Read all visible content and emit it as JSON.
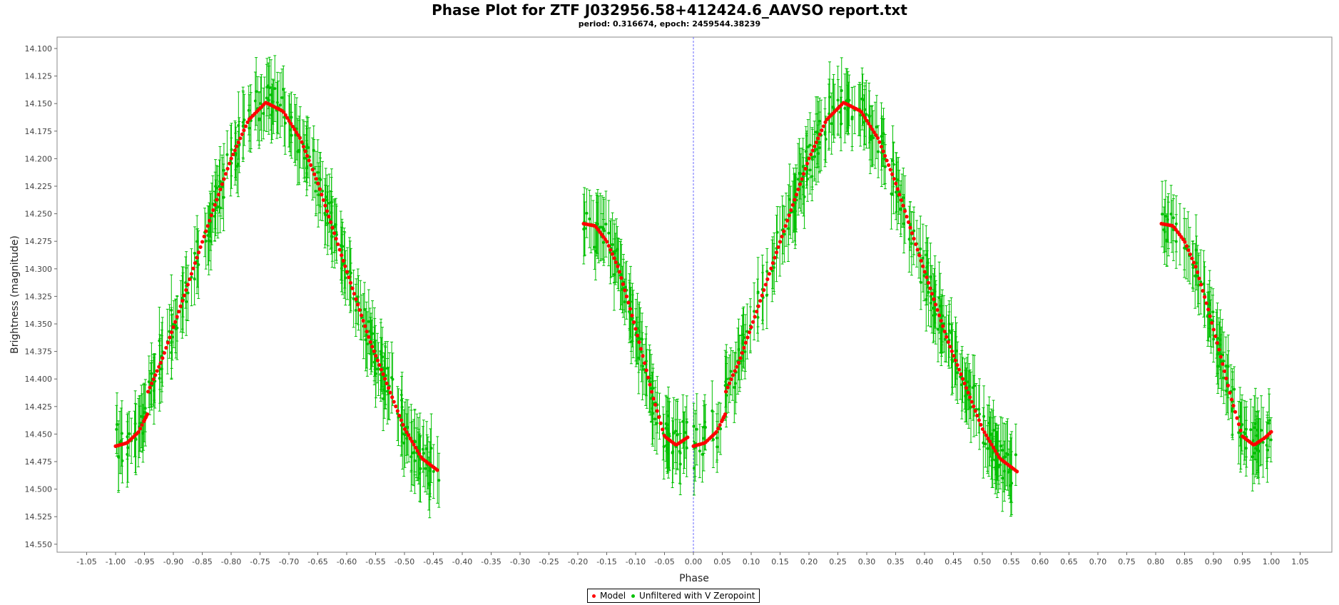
{
  "chart_data": {
    "type": "scatter",
    "title": "Phase Plot for ZTF J032956.58+412424.6_AAVSO report.txt",
    "subtitle": "period: 0.316674, epoch: 2459544.38239",
    "xlabel": "Phase",
    "ylabel": "Brightness (magnitude)",
    "xlim": [
      -1.1,
      1.1
    ],
    "ylim": [
      14.1,
      14.56
    ],
    "y_inverted": true,
    "grid": false,
    "legend_placement": "bottom-center",
    "x_ticks": [
      "-1.05",
      "-1.00",
      "-0.95",
      "-0.90",
      "-0.85",
      "-0.80",
      "-0.75",
      "-0.70",
      "-0.65",
      "-0.60",
      "-0.55",
      "-0.50",
      "-0.45",
      "-0.40",
      "-0.35",
      "-0.30",
      "-0.25",
      "-0.20",
      "-0.15",
      "-0.10",
      "-0.05",
      "0.00",
      "0.05",
      "0.10",
      "0.15",
      "0.20",
      "0.25",
      "0.30",
      "0.35",
      "0.40",
      "0.45",
      "0.50",
      "0.55",
      "0.60",
      "0.65",
      "0.70",
      "0.75",
      "0.80",
      "0.85",
      "0.90",
      "0.95",
      "1.00",
      "1.05"
    ],
    "y_ticks": [
      "14.100",
      "14.125",
      "14.150",
      "14.175",
      "14.200",
      "14.225",
      "14.250",
      "14.275",
      "14.300",
      "14.325",
      "14.350",
      "14.375",
      "14.400",
      "14.425",
      "14.450",
      "14.475",
      "14.500",
      "14.525",
      "14.550"
    ],
    "vertical_marker_x": 0.0,
    "series": [
      {
        "name": "Model",
        "color": "#ff0000",
        "segments": [
          {
            "x": [
              -1.0,
              -0.98,
              -0.96,
              -0.945
            ],
            "y": [
              14.461,
              14.458,
              14.448,
              14.432
            ]
          },
          {
            "x": [
              -0.95,
              -0.92,
              -0.89,
              -0.86,
              -0.83,
              -0.8,
              -0.77,
              -0.74,
              -0.71,
              -0.68,
              -0.65,
              -0.62,
              -0.59,
              -0.56,
              -0.53,
              -0.5,
              -0.47,
              -0.44
            ],
            "y": [
              14.419,
              14.383,
              14.338,
              14.291,
              14.245,
              14.2,
              14.165,
              14.149,
              14.157,
              14.182,
              14.222,
              14.27,
              14.318,
              14.365,
              14.405,
              14.445,
              14.472,
              14.484
            ]
          },
          {
            "x": [
              -0.19,
              -0.17,
              -0.15,
              -0.13,
              -0.11,
              -0.09,
              -0.07,
              -0.05,
              -0.03,
              -0.01
            ],
            "y": [
              14.259,
              14.261,
              14.275,
              14.299,
              14.335,
              14.374,
              14.416,
              14.452,
              14.46,
              14.453
            ]
          },
          {
            "x": [
              0.0,
              0.02,
              0.04,
              0.055
            ],
            "y": [
              14.461,
              14.458,
              14.448,
              14.432
            ]
          },
          {
            "x": [
              0.05,
              0.08,
              0.11,
              0.14,
              0.17,
              0.2,
              0.23,
              0.26,
              0.29,
              0.32,
              0.35,
              0.38,
              0.41,
              0.44,
              0.47,
              0.5,
              0.53,
              0.56
            ],
            "y": [
              14.419,
              14.383,
              14.338,
              14.291,
              14.245,
              14.2,
              14.165,
              14.149,
              14.157,
              14.182,
              14.222,
              14.27,
              14.318,
              14.365,
              14.405,
              14.445,
              14.472,
              14.484
            ]
          },
          {
            "x": [
              0.81,
              0.83,
              0.85,
              0.87,
              0.89,
              0.91,
              0.93,
              0.95,
              0.97,
              0.99,
              1.0
            ],
            "y": [
              14.259,
              14.261,
              14.275,
              14.299,
              14.335,
              14.374,
              14.416,
              14.452,
              14.46,
              14.453,
              14.448
            ]
          }
        ]
      },
      {
        "name": "Unfiltered with V Zeropoint",
        "color": "#00c000",
        "error_bar": 0.025,
        "scatter": 0.018,
        "x_ranges": [
          [
            -1.0,
            -0.44
          ],
          [
            -0.19,
            0.56
          ],
          [
            0.81,
            1.0
          ]
        ]
      }
    ]
  },
  "legend": {
    "items": [
      {
        "label": "Model",
        "color": "#ff0000"
      },
      {
        "label": "Unfiltered with V Zeropoint",
        "color": "#00c000"
      }
    ]
  }
}
